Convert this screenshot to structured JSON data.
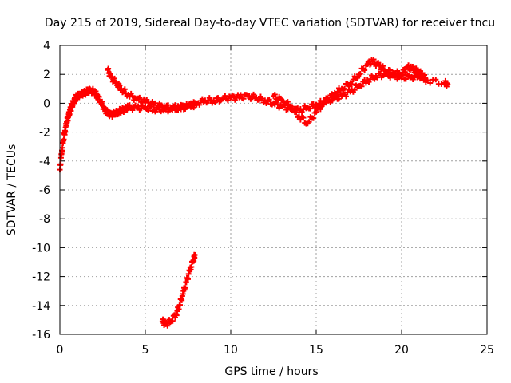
{
  "chart_data": {
    "type": "scatter",
    "title": "Day 215 of 2019, Sidereal Day-to-day VTEC variation (SDTVAR) for receiver tncu",
    "xlabel": "GPS time / hours",
    "ylabel": "SDTVAR / TECUs",
    "xlim": [
      0,
      25
    ],
    "ylim": [
      -16,
      4
    ],
    "xticks": [
      0,
      5,
      10,
      15,
      20,
      25
    ],
    "yticks": [
      -16,
      -14,
      -12,
      -10,
      -8,
      -6,
      -4,
      -2,
      0,
      2,
      4
    ],
    "grid": true,
    "legend": "none",
    "marker": "+",
    "series": [
      {
        "name": "SDTVAR",
        "color": "#ff0000",
        "x": [
          0.0,
          0.1,
          0.2,
          0.3,
          0.4,
          0.5,
          0.6,
          0.7,
          0.8,
          0.9,
          1.0,
          1.2,
          1.4,
          1.6,
          1.8,
          2.0,
          2.2,
          2.4,
          2.6,
          2.8,
          3.0,
          3.2,
          3.4,
          3.6,
          3.8,
          4.0,
          4.5,
          5.0,
          5.5,
          6.0,
          6.5,
          7.0,
          7.5,
          8.0,
          8.5,
          9.0,
          9.5,
          10.0,
          10.5,
          11.0,
          11.5,
          12.0,
          12.5,
          13.0,
          13.5,
          14.0,
          14.5,
          15.0,
          15.5,
          16.0,
          16.5,
          17.0,
          17.5,
          18.0,
          18.5,
          19.0,
          19.5,
          20.0,
          20.5,
          21.0,
          21.5,
          22.5,
          22.7
        ],
        "y": [
          -4.6,
          -3.5,
          -2.6,
          -1.9,
          -1.3,
          -0.9,
          -0.5,
          -0.2,
          0.1,
          0.3,
          0.5,
          0.6,
          0.7,
          0.8,
          0.9,
          0.8,
          0.5,
          0.1,
          -0.4,
          -0.7,
          -0.8,
          -0.7,
          -0.6,
          -0.5,
          -0.4,
          -0.3,
          -0.3,
          -0.3,
          -0.4,
          -0.4,
          -0.4,
          -0.3,
          -0.2,
          0.0,
          0.2,
          0.2,
          0.3,
          0.4,
          0.4,
          0.5,
          0.4,
          0.2,
          0.0,
          -0.2,
          -0.4,
          -0.5,
          -0.3,
          -0.1,
          0.1,
          0.3,
          0.5,
          0.8,
          1.2,
          1.6,
          1.9,
          2.0,
          1.9,
          1.8,
          1.8,
          1.9,
          1.6,
          1.4,
          1.3
        ]
      },
      {
        "name": "SDTVAR-upper",
        "color": "#ff0000",
        "x": [
          2.8,
          3.0,
          3.3,
          3.6,
          4.0,
          4.5,
          5.0,
          5.5,
          6.0,
          6.5,
          7.0,
          7.5,
          8.0,
          12.5,
          13.0,
          13.5,
          14.0,
          14.5,
          15.0,
          15.5,
          16.0,
          16.5,
          17.0,
          17.5,
          18.0,
          18.3,
          18.7,
          19.0,
          19.5,
          20.0,
          20.3,
          20.6,
          20.9,
          21.2,
          21.4
        ],
        "y": [
          2.3,
          1.8,
          1.4,
          1.0,
          0.6,
          0.3,
          0.1,
          -0.1,
          -0.2,
          -0.3,
          -0.3,
          -0.2,
          -0.1,
          0.5,
          0.2,
          -0.2,
          -0.9,
          -1.4,
          -0.6,
          0.1,
          0.6,
          1.0,
          1.4,
          2.0,
          2.7,
          2.9,
          2.6,
          2.3,
          2.1,
          2.0,
          2.5,
          2.4,
          2.2,
          2.0,
          1.7
        ]
      },
      {
        "name": "SDTVAR-lower",
        "color": "#ff0000",
        "x": [
          6.0,
          6.2,
          6.5,
          6.8,
          7.0,
          7.2,
          7.4,
          7.6,
          7.8,
          7.9
        ],
        "y": [
          -15.1,
          -15.3,
          -15.1,
          -14.6,
          -14.0,
          -13.2,
          -12.4,
          -11.6,
          -10.9,
          -10.5
        ]
      }
    ]
  }
}
